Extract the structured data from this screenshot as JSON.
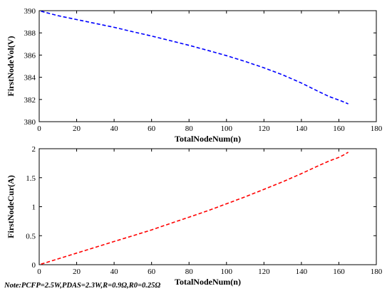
{
  "chart_data": [
    {
      "type": "line",
      "xlabel": "TotalNodeNum(n)",
      "ylabel": "FirstNodeVol(V)",
      "xlim": [
        0,
        180
      ],
      "ylim": [
        380,
        390
      ],
      "x_ticks": [
        "0",
        "20",
        "40",
        "60",
        "80",
        "100",
        "120",
        "140",
        "160",
        "180"
      ],
      "y_ticks": [
        "380",
        "382",
        "384",
        "386",
        "388",
        "390"
      ],
      "grid": false,
      "series": [
        {
          "color": "#0000ff",
          "line_style": "dashed",
          "x": [
            1,
            10,
            20,
            30,
            40,
            50,
            60,
            70,
            80,
            90,
            100,
            110,
            120,
            130,
            140,
            150,
            155,
            160,
            163,
            165
          ],
          "y": [
            389.95,
            389.55,
            389.2,
            388.85,
            388.5,
            388.1,
            387.72,
            387.3,
            386.88,
            386.42,
            385.95,
            385.42,
            384.85,
            384.22,
            383.48,
            382.65,
            382.25,
            381.95,
            381.75,
            381.6
          ]
        }
      ]
    },
    {
      "type": "line",
      "xlabel": "TotalNodeNum(n)",
      "ylabel": "FirstNodeCur(A)",
      "xlim": [
        0,
        180
      ],
      "ylim": [
        0,
        2
      ],
      "x_ticks": [
        "0",
        "20",
        "40",
        "60",
        "80",
        "100",
        "120",
        "140",
        "160",
        "180"
      ],
      "y_ticks": [
        "0",
        "0.5",
        "1",
        "1.5",
        "2"
      ],
      "grid": false,
      "series": [
        {
          "color": "#ff0000",
          "line_style": "dashed",
          "x": [
            1,
            10,
            20,
            30,
            40,
            50,
            60,
            70,
            80,
            90,
            100,
            110,
            120,
            130,
            140,
            150,
            155,
            160,
            163,
            165
          ],
          "y": [
            0.01,
            0.1,
            0.2,
            0.3,
            0.4,
            0.5,
            0.6,
            0.71,
            0.82,
            0.93,
            1.05,
            1.17,
            1.3,
            1.43,
            1.57,
            1.72,
            1.79,
            1.85,
            1.9,
            1.94
          ]
        }
      ]
    }
  ],
  "note": "Note:PCFP=2.5W,PDAS=2.3W,R=0.9Ω,R0=0.25Ω"
}
